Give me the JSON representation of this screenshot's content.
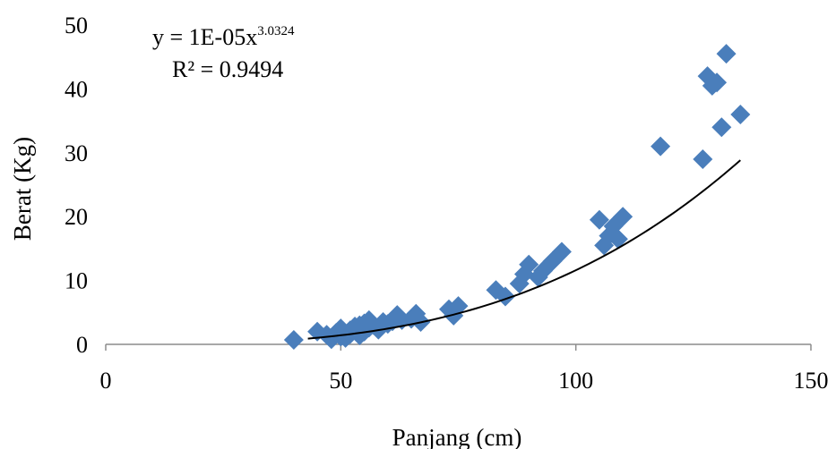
{
  "chart_data": {
    "type": "scatter",
    "xlabel": "Panjang (cm)",
    "ylabel": "Berat (Kg)",
    "xlim": [
      0,
      150
    ],
    "ylim": [
      0,
      50
    ],
    "x_ticks": [
      "0",
      "50",
      "100",
      "150"
    ],
    "y_ticks": [
      "0",
      "10",
      "20",
      "30",
      "40",
      "50"
    ],
    "grid": false,
    "marker": "diamond",
    "colors": {
      "marker": "#4a7ebb",
      "trendline": "#000000"
    },
    "trendline": {
      "type": "power",
      "coefficient": 1e-05,
      "exponent": 3.0324,
      "x_range": [
        43,
        135
      ],
      "equation_base": "y = 1E-05x",
      "equation_exp": "3.0324",
      "r_squared_label": "R² = 0.9494"
    },
    "series": [
      {
        "x": [
          40,
          45,
          47,
          48,
          49,
          50,
          50,
          51,
          52,
          52,
          53,
          54,
          54,
          55,
          55,
          56,
          56,
          57,
          58,
          59,
          60,
          61,
          62,
          63,
          65,
          66,
          67,
          73,
          74,
          75,
          83,
          85,
          88,
          89,
          90,
          92,
          93,
          95,
          97,
          105,
          106,
          107,
          108,
          109,
          110,
          118,
          127,
          128,
          129,
          130,
          131,
          132,
          135
        ],
        "y": [
          0.7,
          2,
          1.5,
          0.8,
          1.8,
          1.2,
          2.5,
          1.0,
          2.2,
          1.6,
          2.8,
          1.4,
          3.0,
          2.0,
          3.3,
          2.6,
          3.8,
          3.0,
          2.3,
          3.5,
          3.2,
          3.6,
          4.6,
          3.8,
          4.0,
          4.8,
          3.5,
          5.5,
          4.5,
          6.0,
          8.5,
          7.5,
          9.5,
          11.0,
          12.5,
          10.5,
          11.5,
          13.0,
          14.5,
          19.5,
          15.5,
          17.0,
          18.5,
          16.5,
          20.0,
          31.0,
          29.0,
          42.0,
          40.5,
          41.0,
          34.0,
          45.5,
          36.0
        ]
      }
    ]
  }
}
